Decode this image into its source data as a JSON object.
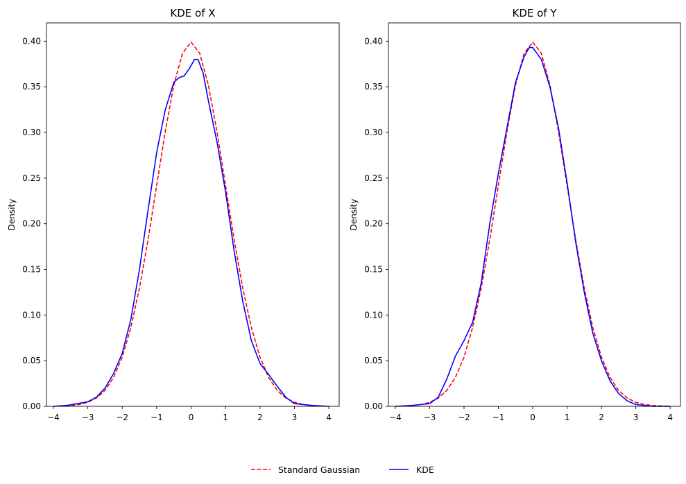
{
  "chart_data": [
    {
      "type": "line",
      "title": "KDE of X",
      "xlabel": "",
      "ylabel": "Density",
      "xlim": [
        -4.2,
        4.3
      ],
      "ylim": [
        0,
        0.42
      ],
      "xticks": [
        -4,
        -3,
        -2,
        -1,
        0,
        1,
        2,
        3,
        4
      ],
      "xtick_labels": [
        "−4",
        "−3",
        "−2",
        "−1",
        "0",
        "1",
        "2",
        "3",
        "4"
      ],
      "yticks": [
        0.0,
        0.05,
        0.1,
        0.15,
        0.2,
        0.25,
        0.3,
        0.35,
        0.4
      ],
      "ytick_labels": [
        "0.00",
        "0.05",
        "0.10",
        "0.15",
        "0.20",
        "0.25",
        "0.30",
        "0.35",
        "0.40"
      ],
      "grid": false,
      "series": [
        {
          "name": "Standard Gaussian",
          "color": "#ff0000",
          "style": "dashed",
          "x": [
            -4,
            -3.75,
            -3.5,
            -3.25,
            -3,
            -2.75,
            -2.5,
            -2.25,
            -2,
            -1.75,
            -1.5,
            -1.25,
            -1,
            -0.75,
            -0.5,
            -0.25,
            0,
            0.25,
            0.5,
            0.75,
            1,
            1.25,
            1.5,
            1.75,
            2,
            2.25,
            2.5,
            2.75,
            3,
            3.25,
            3.5,
            3.75,
            4
          ],
          "y": [
            0.0001,
            0.0004,
            0.0009,
            0.002,
            0.0044,
            0.0091,
            0.0175,
            0.0317,
            0.054,
            0.0863,
            0.1295,
            0.1826,
            0.242,
            0.3011,
            0.3521,
            0.3867,
            0.3989,
            0.3867,
            0.3521,
            0.3011,
            0.242,
            0.1826,
            0.1295,
            0.0863,
            0.054,
            0.0317,
            0.0175,
            0.0091,
            0.0044,
            0.002,
            0.0009,
            0.0004,
            0.0001
          ]
        },
        {
          "name": "KDE",
          "color": "#0000ff",
          "style": "solid",
          "x": [
            -4,
            -3.6,
            -3.3,
            -3,
            -2.75,
            -2.5,
            -2.25,
            -2,
            -1.75,
            -1.5,
            -1.25,
            -1,
            -0.75,
            -0.5,
            -0.35,
            -0.2,
            -0.05,
            0.1,
            0.2,
            0.35,
            0.5,
            0.75,
            1,
            1.25,
            1.5,
            1.75,
            2,
            2.25,
            2.5,
            2.75,
            3,
            3.5,
            4
          ],
          "y": [
            0.0,
            0.001,
            0.003,
            0.005,
            0.01,
            0.02,
            0.036,
            0.058,
            0.095,
            0.15,
            0.215,
            0.278,
            0.325,
            0.355,
            0.36,
            0.362,
            0.37,
            0.38,
            0.38,
            0.365,
            0.335,
            0.29,
            0.235,
            0.17,
            0.115,
            0.072,
            0.047,
            0.035,
            0.022,
            0.01,
            0.003,
            0.001,
            0.0
          ]
        }
      ]
    },
    {
      "type": "line",
      "title": "KDE of Y",
      "xlabel": "",
      "ylabel": "Density",
      "xlim": [
        -4.2,
        4.3
      ],
      "ylim": [
        0,
        0.42
      ],
      "xticks": [
        -4,
        -3,
        -2,
        -1,
        0,
        1,
        2,
        3,
        4
      ],
      "xtick_labels": [
        "−4",
        "−3",
        "−2",
        "−1",
        "0",
        "1",
        "2",
        "3",
        "4"
      ],
      "yticks": [
        0.0,
        0.05,
        0.1,
        0.15,
        0.2,
        0.25,
        0.3,
        0.35,
        0.4
      ],
      "ytick_labels": [
        "0.00",
        "0.05",
        "0.10",
        "0.15",
        "0.20",
        "0.25",
        "0.30",
        "0.35",
        "0.40"
      ],
      "grid": false,
      "series": [
        {
          "name": "Standard Gaussian",
          "color": "#ff0000",
          "style": "dashed",
          "x": [
            -4,
            -3.75,
            -3.5,
            -3.25,
            -3,
            -2.75,
            -2.5,
            -2.25,
            -2,
            -1.75,
            -1.5,
            -1.25,
            -1,
            -0.75,
            -0.5,
            -0.25,
            0,
            0.25,
            0.5,
            0.75,
            1,
            1.25,
            1.5,
            1.75,
            2,
            2.25,
            2.5,
            2.75,
            3,
            3.25,
            3.5,
            3.75,
            4
          ],
          "y": [
            0.0001,
            0.0004,
            0.0009,
            0.002,
            0.0044,
            0.0091,
            0.0175,
            0.0317,
            0.054,
            0.0863,
            0.1295,
            0.1826,
            0.242,
            0.3011,
            0.3521,
            0.3867,
            0.3989,
            0.3867,
            0.3521,
            0.3011,
            0.242,
            0.1826,
            0.1295,
            0.0863,
            0.054,
            0.0317,
            0.0175,
            0.0091,
            0.0044,
            0.002,
            0.0009,
            0.0004,
            0.0001
          ]
        },
        {
          "name": "KDE",
          "color": "#0000ff",
          "style": "solid",
          "x": [
            -4,
            -3.5,
            -3.25,
            -3,
            -2.75,
            -2.5,
            -2.25,
            -2,
            -1.75,
            -1.5,
            -1.25,
            -1,
            -0.75,
            -0.5,
            -0.25,
            -0.1,
            0,
            0.25,
            0.5,
            0.75,
            1,
            1.25,
            1.5,
            1.75,
            2,
            2.25,
            2.5,
            2.75,
            3,
            3.5,
            4
          ],
          "y": [
            0.0,
            0.001,
            0.002,
            0.003,
            0.01,
            0.03,
            0.055,
            0.072,
            0.092,
            0.135,
            0.2,
            0.255,
            0.305,
            0.355,
            0.383,
            0.393,
            0.393,
            0.38,
            0.35,
            0.305,
            0.245,
            0.18,
            0.125,
            0.08,
            0.05,
            0.028,
            0.014,
            0.006,
            0.002,
            0.0,
            0.0
          ]
        }
      ]
    }
  ],
  "legend": {
    "placement": "bottom-center",
    "items": [
      {
        "label": "Standard Gaussian",
        "color": "#ff0000",
        "style": "dashed"
      },
      {
        "label": "KDE",
        "color": "#0000ff",
        "style": "solid"
      }
    ]
  }
}
